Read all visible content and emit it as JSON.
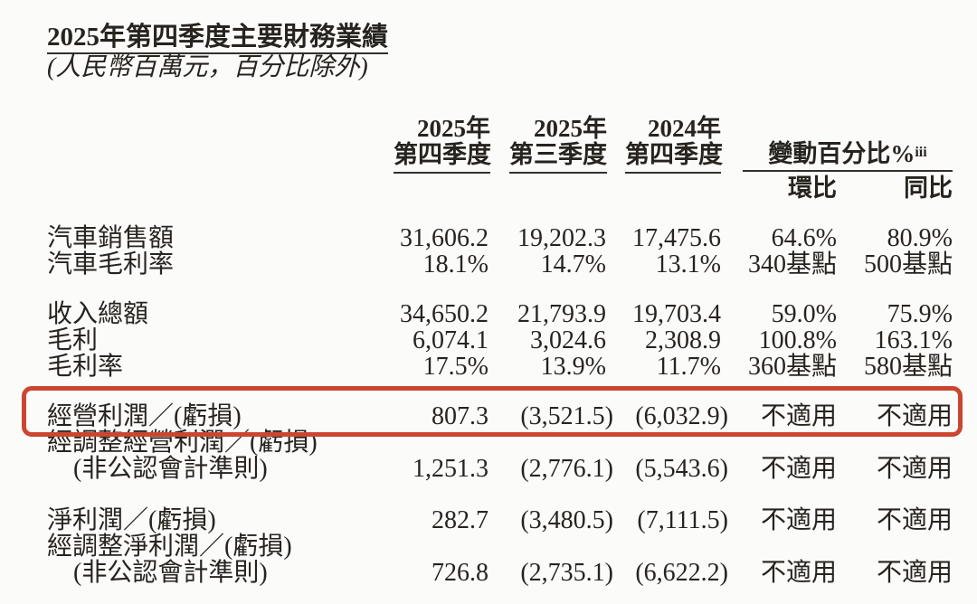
{
  "page": {
    "title": "2025年第四季度主要財務業績",
    "subtitle": "(人民幣百萬元，百分比除外)"
  },
  "table": {
    "column_headers": [
      {
        "line1": "2025年",
        "line2": "第四季度"
      },
      {
        "line1": "2025年",
        "line2": "第三季度"
      },
      {
        "line1": "2024年",
        "line2": "第四季度"
      }
    ],
    "change_header": {
      "label": "變動百分比%",
      "superscript": "iii",
      "sub_columns": [
        "環比",
        "同比"
      ]
    },
    "rows": [
      {
        "label": "汽車銷售額",
        "values": [
          "31,606.2",
          "19,202.3",
          "17,475.6",
          "64.6%",
          "80.9%"
        ]
      },
      {
        "label": "汽車毛利率",
        "values": [
          "18.1%",
          "14.7%",
          "13.1%",
          "340基點",
          "500基點"
        ]
      },
      {
        "label": "收入總額",
        "values": [
          "34,650.2",
          "21,793.9",
          "19,703.4",
          "59.0%",
          "75.9%"
        ],
        "group_start": true
      },
      {
        "label": "毛利",
        "values": [
          "6,074.1",
          "3,024.6",
          "2,308.9",
          "100.8%",
          "163.1%"
        ]
      },
      {
        "label": "毛利率",
        "values": [
          "17.5%",
          "13.9%",
          "11.7%",
          "360基點",
          "580基點"
        ]
      },
      {
        "label": "經營利潤／(虧損)",
        "values": [
          "807.3",
          "(3,521.5)",
          "(6,032.9)",
          "不適用",
          "不適用"
        ],
        "group_start": true,
        "highlighted": true
      },
      {
        "label": "經調整經營利潤／(虧損)",
        "values": []
      },
      {
        "label": "(非公認會計準則)",
        "values": [
          "1,251.3",
          "(2,776.1)",
          "(5,543.6)",
          "不適用",
          "不適用"
        ],
        "indent": true
      },
      {
        "label": "淨利潤／(虧損)",
        "values": [
          "282.7",
          "(3,480.5)",
          "(7,111.5)",
          "不適用",
          "不適用"
        ],
        "group_start": true,
        "group_gap": "large"
      },
      {
        "label": "經調整淨利潤／(虧損)",
        "values": []
      },
      {
        "label": "(非公認會計準則)",
        "values": [
          "726.8",
          "(2,735.1)",
          "(6,622.2)",
          "不適用",
          "不適用"
        ],
        "indent": true
      }
    ]
  },
  "highlight": {
    "shape": "rounded-rectangle",
    "color": "#cb4631",
    "marked_row": "經營利潤／(虧損)"
  }
}
